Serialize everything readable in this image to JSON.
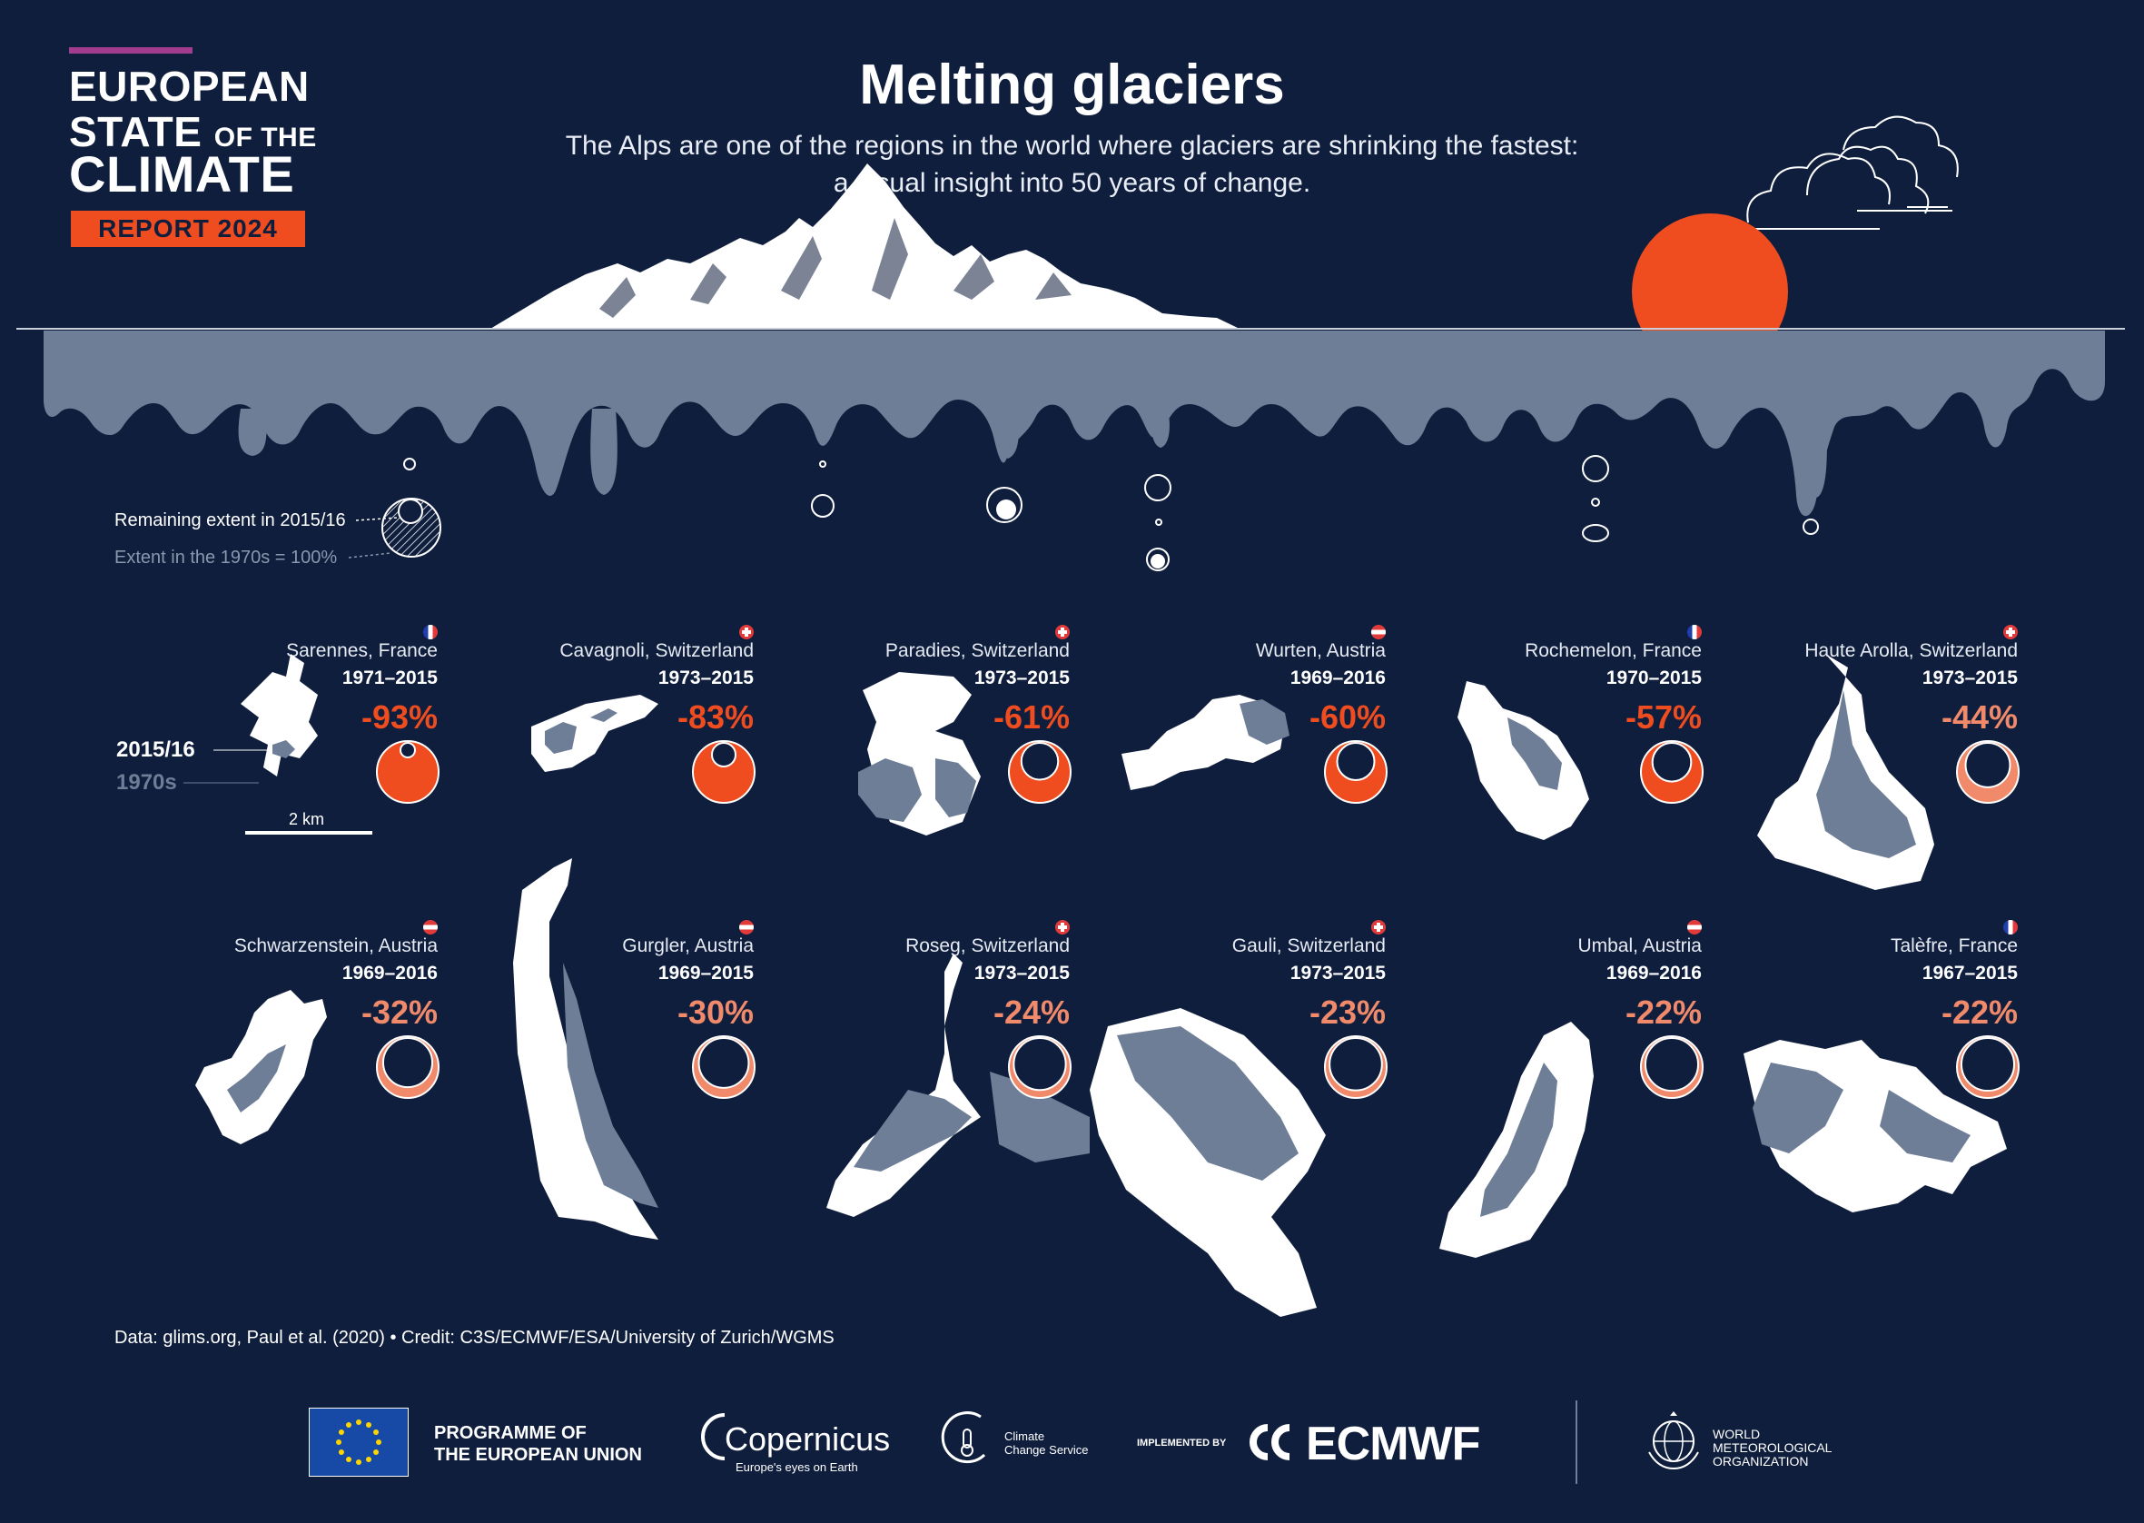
{
  "badge": {
    "line1": "EUROPEAN",
    "line2a": "STATE",
    "line2b": "OF THE",
    "line3": "CLIMATE",
    "report": "REPORT 2024"
  },
  "title": "Melting glaciers",
  "subtitle_line1": "The Alps are one of the regions in the world where glaciers are shrinking the fastest:",
  "subtitle_line2": "a visual insight into 50 years of change.",
  "legend": {
    "remaining": "Remaining extent in 2015/16",
    "extent": "Extent in the 1970s = 100%",
    "label_2015": "2015/16",
    "label_1970s": "1970s",
    "scale": "2 km"
  },
  "colors": {
    "background": "#0f1e3d",
    "ice_1970s": "#6e7e97",
    "ice_2015": "#ffffff",
    "loss_high": "#ef4d1f",
    "loss_low": "#f08a6a",
    "sun": "#ef4d1f"
  },
  "glaciers": [
    {
      "name": "Sarennes, France",
      "years": "1971–2015",
      "change": "-93%",
      "loss": 0.93,
      "flag": "france"
    },
    {
      "name": "Cavagnoli, Switzerland",
      "years": "1973–2015",
      "change": "-83%",
      "loss": 0.83,
      "flag": "switzerland"
    },
    {
      "name": "Paradies, Switzerland",
      "years": "1973–2015",
      "change": "-61%",
      "loss": 0.61,
      "flag": "switzerland"
    },
    {
      "name": "Wurten, Austria",
      "years": "1969–2016",
      "change": "-60%",
      "loss": 0.6,
      "flag": "austria"
    },
    {
      "name": "Rochemelon, France",
      "years": "1970–2015",
      "change": "-57%",
      "loss": 0.57,
      "flag": "france"
    },
    {
      "name": "Haute Arolla, Switzerland",
      "years": "1973–2015",
      "change": "-44%",
      "loss": 0.44,
      "flag": "switzerland"
    },
    {
      "name": "Schwarzenstein, Austria",
      "years": "1969–2016",
      "change": "-32%",
      "loss": 0.32,
      "flag": "austria"
    },
    {
      "name": "Gurgler, Austria",
      "years": "1969–2015",
      "change": "-30%",
      "loss": 0.3,
      "flag": "austria"
    },
    {
      "name": "Roseg, Switzerland",
      "years": "1973–2015",
      "change": "-24%",
      "loss": 0.24,
      "flag": "switzerland"
    },
    {
      "name": "Gauli, Switzerland",
      "years": "1973–2015",
      "change": "-23%",
      "loss": 0.23,
      "flag": "switzerland"
    },
    {
      "name": "Umbal, Austria",
      "years": "1969–2016",
      "change": "-22%",
      "loss": 0.22,
      "flag": "austria"
    },
    {
      "name": "Talèfre, France",
      "years": "1967–2015",
      "change": "-22%",
      "loss": 0.22,
      "flag": "france"
    }
  ],
  "credit": "Data: glims.org, Paul et al. (2020) • Credit: C3S/ECMWF/ESA/University of Zurich/WGMS",
  "footer": {
    "programme_line1": "PROGRAMME OF",
    "programme_line2": "THE EUROPEAN UNION",
    "copernicus": "Copernicus",
    "copernicus_tagline": "Europe's eyes on Earth",
    "ccs_line1": "Climate",
    "ccs_line2": "Change Service",
    "implemented_by": "IMPLEMENTED BY",
    "ecmwf": "ECMWF",
    "wmo_line1": "WORLD",
    "wmo_line2": "METEOROLOGICAL",
    "wmo_line3": "ORGANIZATION"
  }
}
